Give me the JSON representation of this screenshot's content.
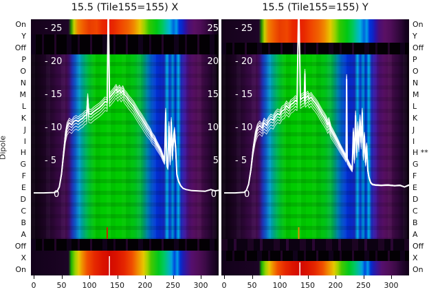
{
  "titles": {
    "left": "15.5 (Tile155=155) X",
    "right": "15.5 (Tile155=155) Y"
  },
  "dipole_axis_label": "Dipole",
  "row_labels_left": [
    "On",
    "Y",
    "Off",
    "P",
    "O",
    "N",
    "M",
    "L",
    "K",
    "J",
    "I",
    "H",
    "G",
    "F",
    "E",
    "D",
    "C",
    "B",
    "A",
    "Off",
    "X",
    "On"
  ],
  "row_labels_right": [
    "On",
    "Y",
    "Off",
    "P",
    "O",
    "N",
    "M",
    "L",
    "K",
    "J",
    "I",
    "H **",
    "G",
    "F",
    "E",
    "D",
    "C",
    "B",
    "A",
    "Off",
    "X",
    "On"
  ],
  "y_axis": {
    "inner_tick_labels": [
      "- 25",
      "- 20",
      "- 15",
      "- 10",
      "- 5"
    ],
    "inner_tick_values": [
      25,
      20,
      15,
      10,
      5
    ],
    "between_tick_labels": [
      "25",
      "20",
      "15",
      "10",
      "5"
    ],
    "between_tick_values": [
      25,
      20,
      15,
      10,
      5
    ],
    "zero_label": "0"
  },
  "x_axis": {
    "tick_labels": [
      "0",
      "50",
      "100",
      "150",
      "200",
      "250",
      "300"
    ],
    "tick_values": [
      0,
      50,
      100,
      150,
      200,
      250,
      300
    ]
  },
  "colors": {
    "curve": "#ffffff",
    "marker_left": "#cc2200",
    "marker_right": "#e09000",
    "title_text": "#111111"
  },
  "chart_data": {
    "type": "heatmap",
    "subtype": "spectrogram heatmaps with overlaid white bandpass line bundles",
    "colormap": "rainbow (black/purple low -> blue -> green -> yellow -> red high)",
    "x_range": [
      0,
      332
    ],
    "y_range": [
      0,
      27
    ],
    "x_ticks": [
      0,
      50,
      100,
      150,
      200,
      250,
      300
    ],
    "y_ticks": [
      0,
      5,
      10,
      15,
      20,
      25
    ],
    "rows_top_to_bottom": [
      "On",
      "Y",
      "Off",
      "P",
      "O",
      "N",
      "M",
      "L",
      "K",
      "J",
      "I",
      "H",
      "G",
      "F",
      "E",
      "D",
      "C",
      "B",
      "A",
      "Off",
      "X",
      "On"
    ],
    "flagged_row": "H ** (right panel)",
    "panels": [
      {
        "id": "X",
        "title": "15.5 (Tile155=155) X",
        "signal_rows_top": [
          "On"
        ],
        "signal_rows_bottom": [
          "X",
          "On"
        ],
        "spike_x": 134,
        "bottom_marker": {
          "x": 132,
          "color": "#cc2200"
        },
        "rainbow_tick_x": 136,
        "curve": [
          [
            0,
            0.3
          ],
          [
            18,
            0.3
          ],
          [
            36,
            0.35
          ],
          [
            42,
            0.5
          ],
          [
            46,
            1.2
          ],
          [
            50,
            3.2
          ],
          [
            54,
            6.5
          ],
          [
            57,
            9
          ],
          [
            60,
            10.3
          ],
          [
            64,
            10.9
          ],
          [
            68,
            10.6
          ],
          [
            72,
            11.1
          ],
          [
            76,
            11.3
          ],
          [
            80,
            11.1
          ],
          [
            84,
            11.4
          ],
          [
            88,
            11.6
          ],
          [
            92,
            12.0
          ],
          [
            95,
            12.1
          ],
          [
            97,
            14.6
          ],
          [
            99,
            12.3
          ],
          [
            103,
            12.2
          ],
          [
            108,
            12.6
          ],
          [
            113,
            12.9
          ],
          [
            118,
            13.2
          ],
          [
            123,
            13.6
          ],
          [
            128,
            14.1
          ],
          [
            132,
            14.0
          ],
          [
            134,
            30
          ],
          [
            136,
            14.7
          ],
          [
            140,
            15.1
          ],
          [
            144,
            15.5
          ],
          [
            148,
            16.0
          ],
          [
            151,
            15.5
          ],
          [
            154,
            15.9
          ],
          [
            157,
            15.4
          ],
          [
            160,
            15.8
          ],
          [
            163,
            15.2
          ],
          [
            167,
            14.8
          ],
          [
            171,
            14.3
          ],
          [
            175,
            13.9
          ],
          [
            179,
            13.5
          ],
          [
            184,
            12.8
          ],
          [
            189,
            12.1
          ],
          [
            194,
            11.5
          ],
          [
            199,
            10.8
          ],
          [
            204,
            10.1
          ],
          [
            209,
            9.5
          ],
          [
            213,
            8.8
          ],
          [
            217,
            8.4
          ],
          [
            221,
            7.7
          ],
          [
            225,
            7.1
          ],
          [
            229,
            6.5
          ],
          [
            232,
            5.8
          ],
          [
            235,
            5.2
          ],
          [
            237,
            12.4
          ],
          [
            239,
            4.8
          ],
          [
            241,
            4.3
          ],
          [
            243,
            10.4
          ],
          [
            245,
            5.1
          ],
          [
            247,
            11.0
          ],
          [
            249,
            5.9
          ],
          [
            251,
            8.6
          ],
          [
            253,
            9.6
          ],
          [
            255,
            6.9
          ],
          [
            257,
            3.1
          ],
          [
            260,
            2.1
          ],
          [
            264,
            1.4
          ],
          [
            268,
            1.0
          ],
          [
            274,
            0.8
          ],
          [
            284,
            0.65
          ],
          [
            296,
            0.6
          ],
          [
            308,
            0.55
          ],
          [
            318,
            0.8
          ],
          [
            326,
            0.6
          ],
          [
            332,
            0.7
          ]
        ]
      },
      {
        "id": "Y",
        "title": "15.5 (Tile155=155) Y",
        "signal_rows_top": [
          "On",
          "Y"
        ],
        "signal_rows_bottom": [
          "On"
        ],
        "spike_x": 134,
        "bottom_marker": {
          "x": 134,
          "color": "#e09000"
        },
        "rainbow_tick_x": 136,
        "curve": [
          [
            0,
            0.3
          ],
          [
            20,
            0.3
          ],
          [
            36,
            0.4
          ],
          [
            40,
            0.7
          ],
          [
            44,
            1.6
          ],
          [
            48,
            3.8
          ],
          [
            52,
            6.8
          ],
          [
            56,
            9.0
          ],
          [
            60,
            10.1
          ],
          [
            64,
            10.5
          ],
          [
            68,
            10.1
          ],
          [
            72,
            10.9
          ],
          [
            76,
            10.5
          ],
          [
            80,
            11.1
          ],
          [
            84,
            11.5
          ],
          [
            88,
            11.3
          ],
          [
            92,
            11.9
          ],
          [
            96,
            12.3
          ],
          [
            100,
            12.1
          ],
          [
            104,
            12.7
          ],
          [
            108,
            12.9
          ],
          [
            112,
            13.5
          ],
          [
            116,
            13.1
          ],
          [
            120,
            13.7
          ],
          [
            124,
            13.9
          ],
          [
            128,
            14.3
          ],
          [
            131,
            14.1
          ],
          [
            134,
            30
          ],
          [
            137,
            14.4
          ],
          [
            141,
            14.7
          ],
          [
            144,
            14.8
          ],
          [
            145,
            18.3
          ],
          [
            146,
            14.6
          ],
          [
            150,
            15.0
          ],
          [
            153,
            14.5
          ],
          [
            156,
            14.8
          ],
          [
            160,
            14.3
          ],
          [
            164,
            13.9
          ],
          [
            168,
            13.4
          ],
          [
            172,
            12.8
          ],
          [
            176,
            12.2
          ],
          [
            180,
            11.7
          ],
          [
            184,
            11.1
          ],
          [
            186,
            10.6
          ],
          [
            188,
            11.0
          ],
          [
            192,
            9.8
          ],
          [
            196,
            9.2
          ],
          [
            200,
            8.6
          ],
          [
            204,
            8.0
          ],
          [
            208,
            7.3
          ],
          [
            212,
            6.7
          ],
          [
            216,
            6.1
          ],
          [
            219,
            5.6
          ],
          [
            220,
            17.5
          ],
          [
            221,
            5.3
          ],
          [
            224,
            4.8
          ],
          [
            227,
            4.3
          ],
          [
            230,
            3.9
          ],
          [
            232,
            9.5
          ],
          [
            234,
            5.4
          ],
          [
            236,
            12.0
          ],
          [
            238,
            6.4
          ],
          [
            240,
            10.4
          ],
          [
            242,
            7.4
          ],
          [
            244,
            11.4
          ],
          [
            246,
            7.9
          ],
          [
            248,
            12.4
          ],
          [
            250,
            5.9
          ],
          [
            252,
            8.9
          ],
          [
            254,
            4.9
          ],
          [
            256,
            7.4
          ],
          [
            258,
            3.7
          ],
          [
            260,
            2.7
          ],
          [
            263,
            1.9
          ],
          [
            266,
            1.6
          ],
          [
            272,
            1.5
          ],
          [
            282,
            1.45
          ],
          [
            294,
            1.5
          ],
          [
            306,
            1.4
          ],
          [
            316,
            1.45
          ],
          [
            324,
            1.2
          ],
          [
            332,
            1.5
          ]
        ]
      }
    ]
  }
}
